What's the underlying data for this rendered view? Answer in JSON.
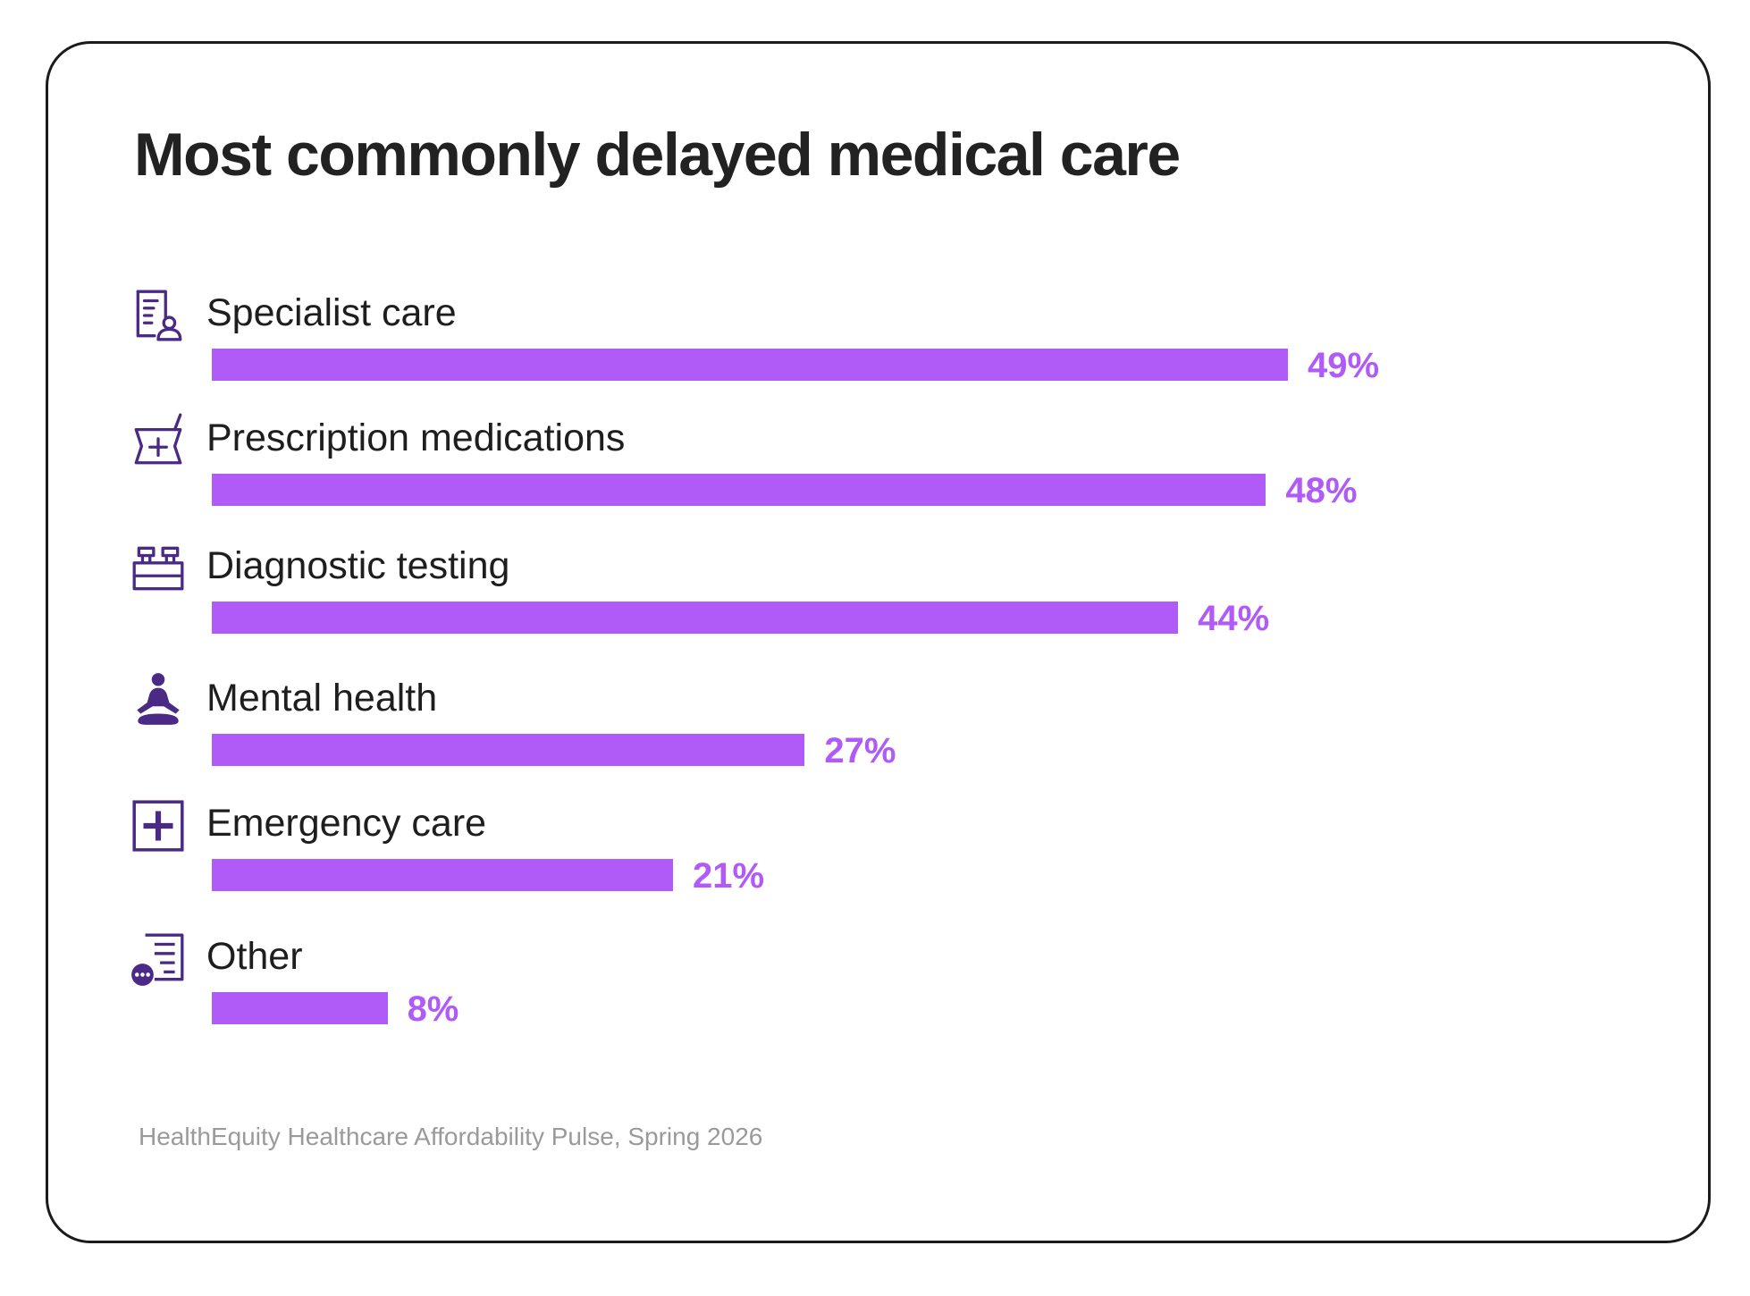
{
  "colors": {
    "bar": "#B05AF7",
    "icon": "#4B2A85",
    "title": "#222222",
    "source": "#9A9A9A"
  },
  "chart_data": {
    "type": "bar",
    "orientation": "horizontal",
    "title": "Most commonly delayed medical care",
    "categories": [
      "Specialist care",
      "Prescription medications",
      "Diagnostic testing",
      "Mental health",
      "Emergency care",
      "Other"
    ],
    "values": [
      49,
      48,
      44,
      27,
      21,
      8
    ],
    "value_labels": [
      "49%",
      "48%",
      "44%",
      "27%",
      "21%",
      "8%"
    ],
    "icons": [
      "specialist-doctor-icon",
      "prescription-mortar-icon",
      "diagnostic-test-icon",
      "meditation-icon",
      "emergency-plus-icon",
      "other-list-icon"
    ],
    "unit": "%",
    "xlim": [
      0,
      50
    ],
    "grid": false,
    "legend": "none",
    "source": "HealthEquity Healthcare Affordability Pulse, Spring 2026"
  }
}
